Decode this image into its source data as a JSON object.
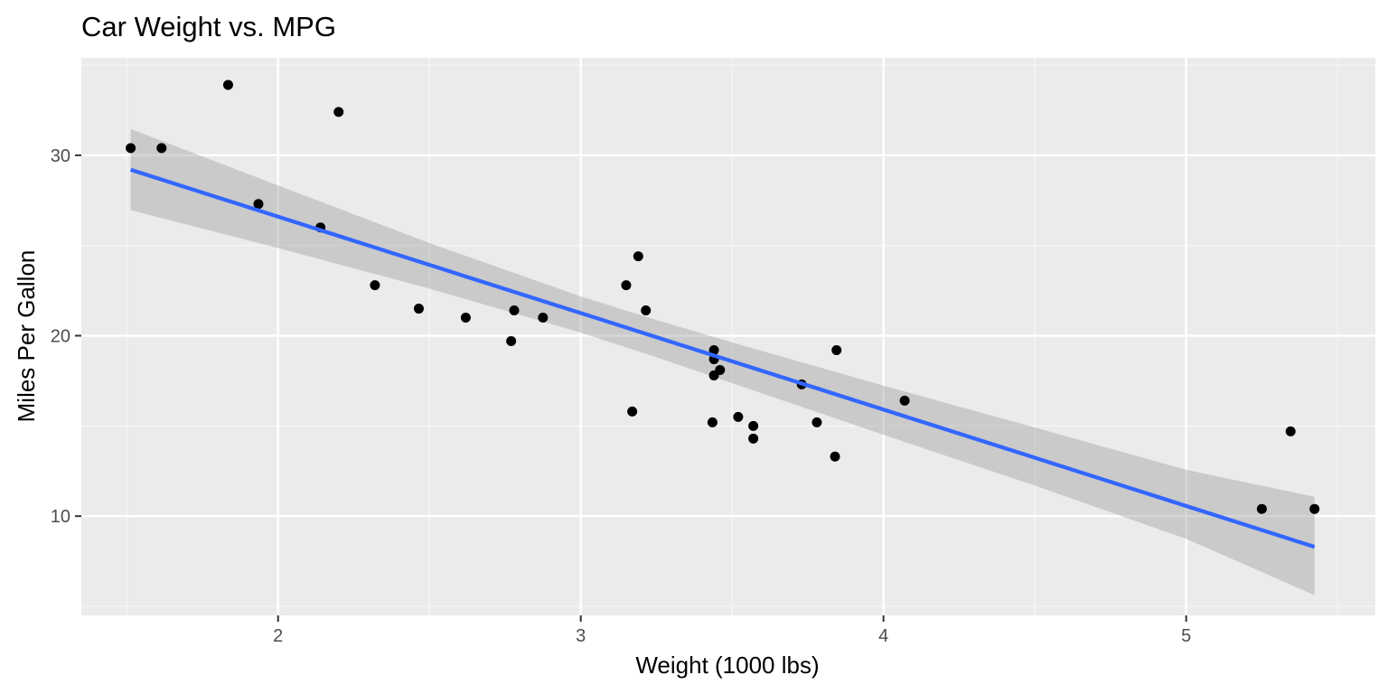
{
  "chart_data": {
    "type": "scatter",
    "title": "Car Weight vs. MPG",
    "xlabel": "Weight (1000 lbs)",
    "ylabel": "Miles Per Gallon",
    "xlim": [
      1.35,
      5.625
    ],
    "ylim": [
      4.5,
      35.4
    ],
    "x_ticks": [
      2,
      3,
      4,
      5
    ],
    "x_tick_labels": [
      "2",
      "3",
      "4",
      "5"
    ],
    "y_ticks": [
      10,
      20,
      30
    ],
    "y_tick_labels": [
      "10",
      "20",
      "30"
    ],
    "grid": true,
    "points": {
      "x": [
        1.513,
        1.615,
        1.835,
        1.935,
        2.14,
        2.2,
        2.32,
        2.465,
        2.62,
        2.77,
        2.78,
        2.875,
        3.15,
        3.17,
        3.19,
        3.215,
        3.435,
        3.44,
        3.44,
        3.44,
        3.46,
        3.52,
        3.57,
        3.57,
        3.73,
        3.78,
        3.84,
        3.845,
        4.07,
        5.25,
        5.345,
        5.424
      ],
      "y": [
        30.4,
        30.4,
        33.9,
        27.3,
        26.0,
        32.4,
        22.8,
        21.5,
        21.0,
        19.7,
        21.4,
        21.0,
        22.8,
        15.8,
        24.4,
        21.4,
        15.2,
        17.8,
        18.7,
        19.2,
        18.1,
        15.5,
        15.0,
        14.3,
        17.3,
        15.2,
        13.3,
        19.2,
        16.4,
        10.4,
        14.7,
        10.4
      ],
      "color": "#000000"
    },
    "regression": {
      "method": "lm",
      "intercept": 37.285,
      "slope": -5.344,
      "x_range": [
        1.513,
        5.424
      ],
      "color": "#3366FF",
      "confidence_band": {
        "x": [
          1.513,
          2.0,
          2.5,
          3.0,
          3.25,
          3.5,
          4.0,
          4.5,
          5.0,
          5.424
        ],
        "lower": [
          26.96,
          24.86,
          22.61,
          20.17,
          18.81,
          17.37,
          14.51,
          11.69,
          8.74,
          5.62
        ],
        "upper": [
          31.46,
          28.33,
          25.14,
          22.18,
          20.87,
          19.63,
          17.23,
          14.91,
          12.57,
          11.07
        ],
        "color": "#999999"
      }
    },
    "colors": {
      "panel_background": "#EBEBEB",
      "grid_major": "#FFFFFF",
      "grid_minor": "#F7F7F7"
    }
  }
}
